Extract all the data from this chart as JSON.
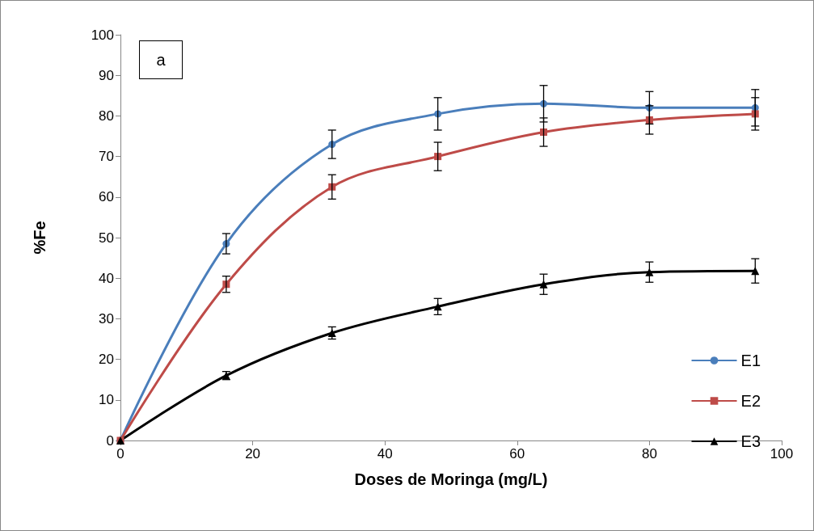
{
  "chart_data": {
    "type": "line",
    "xlabel": "Doses de Moringa (mg/L)",
    "ylabel": "%Fe",
    "annotations": [
      "a"
    ],
    "x": [
      0,
      16,
      32,
      48,
      64,
      80,
      96
    ],
    "series": [
      {
        "name": "E1",
        "color": "#4a7ebb",
        "marker": "circle",
        "values": [
          0,
          48.5,
          73,
          80.5,
          83,
          82,
          82
        ],
        "errors": [
          null,
          2.5,
          3.5,
          4,
          4.5,
          4,
          4.5
        ]
      },
      {
        "name": "E2",
        "color": "#be4b48",
        "marker": "square",
        "values": [
          0,
          38.5,
          62.5,
          70,
          76,
          79,
          80.5
        ],
        "errors": [
          null,
          2,
          3,
          3.5,
          3.5,
          3.5,
          4
        ]
      },
      {
        "name": "E3",
        "color": "#000000",
        "marker": "triangle",
        "values": [
          0,
          16,
          26.5,
          33,
          38.5,
          41.5,
          41.8
        ],
        "errors": [
          null,
          1,
          1.5,
          2,
          2.5,
          2.5,
          3
        ]
      }
    ],
    "xlim": [
      0,
      100
    ],
    "xticks": [
      0,
      20,
      40,
      60,
      80,
      100
    ],
    "ylim": [
      0,
      100
    ],
    "yticks": [
      0,
      10,
      20,
      30,
      40,
      50,
      60,
      70,
      80,
      90,
      100
    ],
    "grid": false,
    "legend": "right",
    "line_style": "solid"
  }
}
